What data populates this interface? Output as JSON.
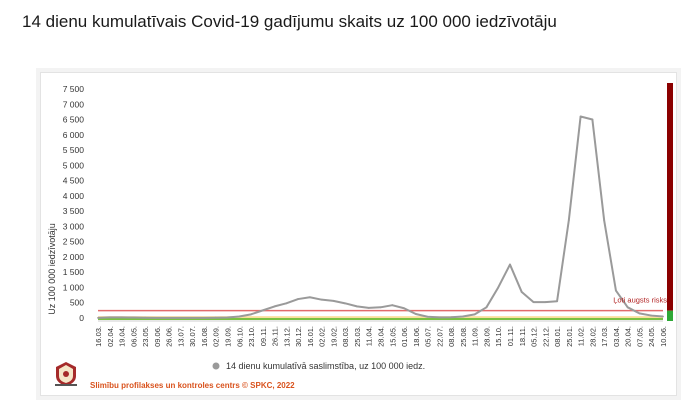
{
  "page": {
    "title": "14 dienu kumulatīvais Covid-19 gadījumu skaits uz 100 000 iedzīvotāju"
  },
  "footer": {
    "credit": "Slimību profilakses un kontroles centrs © SPKC, 2022"
  },
  "colors": {
    "line": "#9a9a9a",
    "high_risk_line": "#e26b6b",
    "low_risk_line": "#7ac142",
    "zero_band": "#f6c24a",
    "extreme_bar": "#8b0000",
    "extreme_bar_low": "#2ea836",
    "credit_text": "#d9531e"
  },
  "chart_data": {
    "type": "line",
    "title": "",
    "ylabel": "Uz 100 000 iedzīvotāju",
    "xlabel": "",
    "ylim": [
      0,
      7500
    ],
    "yticks": [
      0,
      500,
      1000,
      1500,
      2000,
      2500,
      3000,
      3500,
      4000,
      4500,
      5000,
      5500,
      6000,
      6500,
      7000,
      7500
    ],
    "ytick_labels": [
      "0",
      "500",
      "1 000",
      "1 500",
      "2 000",
      "2 500",
      "3 000",
      "3 500",
      "4 000",
      "4 500",
      "5 000",
      "5 500",
      "6 000",
      "6 500",
      "7 000",
      "7 500"
    ],
    "categories": [
      "16.03.",
      "02.04.",
      "19.04.",
      "06.05.",
      "23.05.",
      "09.06.",
      "26.06.",
      "13.07.",
      "30.07.",
      "16.08.",
      "02.09.",
      "19.09.",
      "06.10.",
      "23.10.",
      "09.11.",
      "26.11.",
      "13.12.",
      "30.12.",
      "16.01.",
      "02.02.",
      "19.02.",
      "08.03.",
      "25.03.",
      "11.04.",
      "28.04.",
      "15.05.",
      "01.06.",
      "18.06.",
      "05.07.",
      "22.07.",
      "08.08.",
      "25.08.",
      "11.09.",
      "28.09.",
      "15.10.",
      "01.11.",
      "18.11.",
      "05.12.",
      "22.12.",
      "08.01.",
      "25.01.",
      "11.02.",
      "28.02.",
      "17.03.",
      "03.04.",
      "20.04.",
      "07.05.",
      "24.05.",
      "10.06."
    ],
    "series": [
      {
        "name": "14 dienu kumulatīvā saslimstība, uz 100 000 iedz.",
        "values": [
          5,
          20,
          20,
          15,
          10,
          5,
          5,
          5,
          5,
          5,
          10,
          15,
          50,
          120,
          250,
          380,
          480,
          620,
          680,
          600,
          560,
          480,
          380,
          330,
          350,
          420,
          320,
          130,
          40,
          20,
          25,
          50,
          120,
          350,
          1000,
          1750,
          850,
          520,
          520,
          550,
          3200,
          6600,
          6500,
          3200,
          900,
          350,
          150,
          80,
          50
        ]
      }
    ],
    "thresholds": [
      {
        "label": "Ļoti augsts risks",
        "value": 240,
        "color": "#e26b6b"
      },
      {
        "value": 60,
        "color": "#7ac142"
      }
    ],
    "legend_placement": "bottom",
    "grid": false
  }
}
